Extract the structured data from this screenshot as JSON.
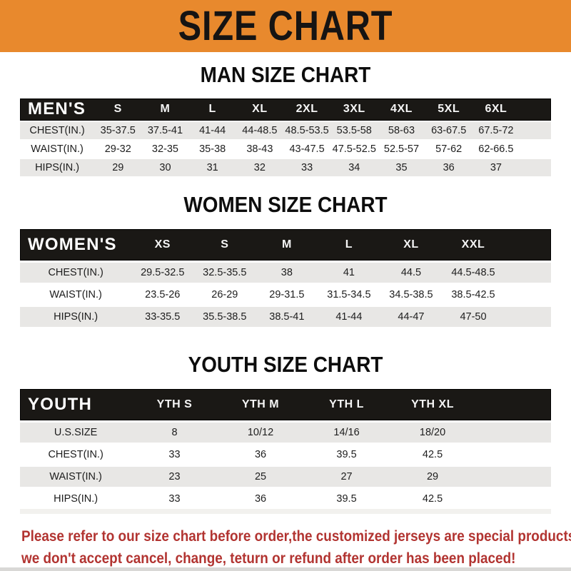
{
  "banner": {
    "title": "SIZE CHART"
  },
  "tables": [
    {
      "title": "MAN SIZE CHART",
      "header_label": "MEN'S",
      "columns": [
        "S",
        "M",
        "L",
        "XL",
        "2XL",
        "3XL",
        "4XL",
        "5XL",
        "6XL"
      ],
      "rows": [
        {
          "label": "CHEST(IN.)",
          "values": [
            "35-37.5",
            "37.5-41",
            "41-44",
            "44-48.5",
            "48.5-53.5",
            "53.5-58",
            "58-63",
            "63-67.5",
            "67.5-72"
          ]
        },
        {
          "label": "WAIST(IN.)",
          "values": [
            "29-32",
            "32-35",
            "35-38",
            "38-43",
            "43-47.5",
            "47.5-52.5",
            "52.5-57",
            "57-62",
            "62-66.5"
          ]
        },
        {
          "label": "HIPS(IN.)",
          "values": [
            "29",
            "30",
            "31",
            "32",
            "33",
            "34",
            "35",
            "36",
            "37"
          ]
        }
      ]
    },
    {
      "title": "WOMEN SIZE CHART",
      "header_label": "WOMEN'S",
      "columns": [
        "XS",
        "S",
        "M",
        "L",
        "XL",
        "XXL"
      ],
      "rows": [
        {
          "label": "CHEST(IN.)",
          "values": [
            "29.5-32.5",
            "32.5-35.5",
            "38",
            "41",
            "44.5",
            "44.5-48.5"
          ]
        },
        {
          "label": "WAIST(IN.)",
          "values": [
            "23.5-26",
            "26-29",
            "29-31.5",
            "31.5-34.5",
            "34.5-38.5",
            "38.5-42.5"
          ]
        },
        {
          "label": "HIPS(IN.)",
          "values": [
            "33-35.5",
            "35.5-38.5",
            "38.5-41",
            "41-44",
            "44-47",
            "47-50"
          ]
        }
      ]
    },
    {
      "title": "YOUTH SIZE CHART",
      "header_label": "YOUTH",
      "columns": [
        "YTH S",
        "YTH M",
        "YTH L",
        "YTH XL"
      ],
      "rows": [
        {
          "label": "U.S.SIZE",
          "values": [
            "8",
            "10/12",
            "14/16",
            "18/20"
          ]
        },
        {
          "label": "CHEST(IN.)",
          "values": [
            "33",
            "36",
            "39.5",
            "42.5"
          ]
        },
        {
          "label": "WAIST(IN.)",
          "values": [
            "23",
            "25",
            "27",
            "29"
          ]
        },
        {
          "label": "HIPS(IN.)",
          "values": [
            "33",
            "36",
            "39.5",
            "42.5"
          ]
        }
      ]
    }
  ],
  "footer": {
    "line1": "Please refer to our size chart before order,the customized jerseys are special products,",
    "line2": "we don't accept cancel, change, teturn or refund after order has been placed!"
  },
  "colors": {
    "banner_bg": "#E8892D",
    "header_bg": "#1A1815",
    "row_alt_bg": "#E8E7E5",
    "footer_text": "#B23431"
  }
}
